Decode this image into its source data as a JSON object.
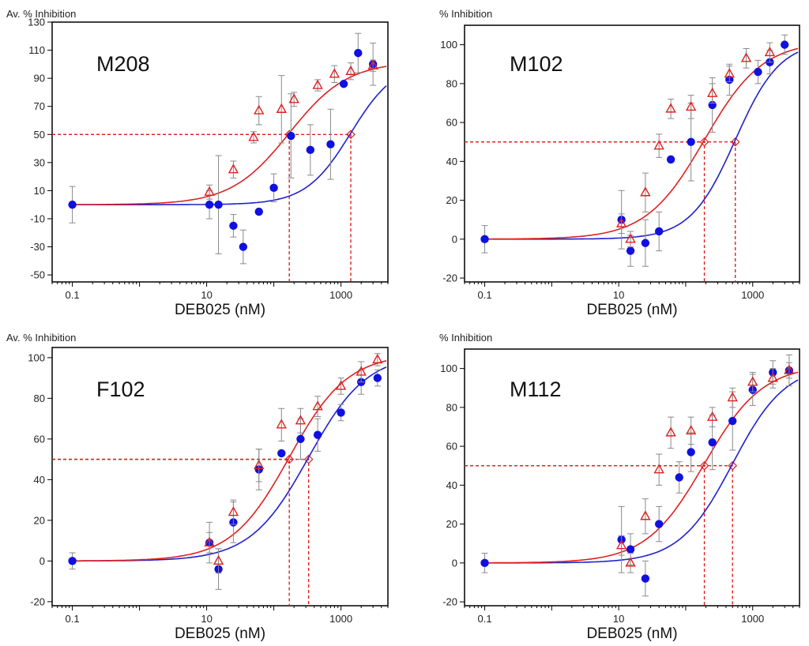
{
  "figure_caption": "",
  "chart_data": [
    {
      "type": "scatter",
      "title": "M208",
      "ylabel": "Av. % Inhibition",
      "xlabel": "DEB025 (nM)",
      "xscale": "log",
      "xlim": [
        0.05,
        5000
      ],
      "ylim": [
        -55,
        130
      ],
      "yticks": [
        -50,
        -30,
        -10,
        10,
        30,
        50,
        70,
        90,
        110,
        130
      ],
      "ytick_labels": [
        "-50",
        "-30",
        "-10",
        "10",
        "30",
        "50",
        "70",
        "90",
        "110",
        "130"
      ],
      "xticks": [
        0.1,
        10,
        1000
      ],
      "xtick_labels": [
        "0.1",
        "10",
        "1000"
      ],
      "series": [
        {
          "name": "blue (filled circles)",
          "color": "#1010e0",
          "marker": "circle",
          "x": [
            0.1,
            11,
            15,
            25,
            35,
            60,
            100,
            180,
            350,
            700,
            1100,
            1800,
            3000
          ],
          "y": [
            0,
            0,
            0,
            -15,
            -30,
            -5,
            12,
            49,
            39,
            43,
            86,
            108,
            100
          ],
          "err": [
            13,
            10,
            35,
            8,
            12,
            0,
            10,
            30,
            18,
            25,
            0,
            14,
            15
          ]
        },
        {
          "name": "red (open triangles)",
          "color": "#e02020",
          "marker": "triangle",
          "x": [
            11,
            25,
            50,
            60,
            130,
            200,
            450,
            800,
            1400,
            3000
          ],
          "y": [
            9,
            25,
            48,
            67,
            68,
            75,
            85,
            93,
            95,
            99
          ],
          "err": [
            5,
            6,
            4,
            10,
            24,
            5,
            4,
            6,
            6,
            4
          ]
        }
      ],
      "fits": [
        {
          "name": "blue fit",
          "color": "#2020d0",
          "ec50": 1400,
          "hill": 1.3,
          "bottom": 0,
          "top": 102
        },
        {
          "name": "red fit",
          "color": "#e02020",
          "ec50": 170,
          "hill": 1.0,
          "bottom": 0,
          "top": 102
        }
      ],
      "ic50_guides": [
        {
          "series": "red",
          "x": 170,
          "y": 50
        },
        {
          "series": "blue",
          "x": 1400,
          "y": 50
        }
      ]
    },
    {
      "type": "scatter",
      "title": "M102",
      "ylabel": "% Inhibition",
      "xlabel": "DEB025 (nM)",
      "xscale": "log",
      "xlim": [
        0.05,
        5000
      ],
      "ylim": [
        -22,
        110
      ],
      "yticks": [
        -20,
        0,
        20,
        40,
        60,
        80,
        100
      ],
      "ytick_labels": [
        "-20",
        "0",
        "20",
        "40",
        "60",
        "80",
        "100"
      ],
      "xticks": [
        0.1,
        10,
        1000
      ],
      "xtick_labels": [
        "0.1",
        "10",
        "1000"
      ],
      "series": [
        {
          "name": "blue (filled circles)",
          "color": "#1010e0",
          "marker": "circle",
          "x": [
            0.1,
            11,
            15,
            25,
            40,
            60,
            120,
            250,
            450,
            1200,
            1800,
            3000
          ],
          "y": [
            0,
            10,
            -6,
            -2,
            4,
            41,
            50,
            69,
            82,
            86,
            91,
            100
          ],
          "err": [
            7,
            15,
            8,
            12,
            10,
            0,
            20,
            14,
            8,
            6,
            6,
            5
          ]
        },
        {
          "name": "red (open triangles)",
          "color": "#e02020",
          "marker": "triangle",
          "x": [
            11,
            15,
            25,
            40,
            60,
            120,
            250,
            450,
            800,
            1800
          ],
          "y": [
            8,
            0,
            24,
            48,
            67,
            68,
            75,
            85,
            93,
            96
          ],
          "err": [
            5,
            4,
            10,
            6,
            5,
            6,
            5,
            4,
            5,
            5
          ]
        }
      ],
      "fits": [
        {
          "name": "blue fit",
          "color": "#2020d0",
          "ec50": 550,
          "hill": 1.3,
          "bottom": 0,
          "top": 102
        },
        {
          "name": "red fit",
          "color": "#e02020",
          "ec50": 190,
          "hill": 1.0,
          "bottom": 0,
          "top": 102
        }
      ],
      "ic50_guides": [
        {
          "series": "red",
          "x": 190,
          "y": 50
        },
        {
          "series": "blue",
          "x": 550,
          "y": 50
        }
      ]
    },
    {
      "type": "scatter",
      "title": "F102",
      "ylabel": "Av. % Inhibition",
      "xlabel": "DEB025 (nM)",
      "xscale": "log",
      "xlim": [
        0.05,
        5000
      ],
      "ylim": [
        -22,
        105
      ],
      "yticks": [
        -20,
        0,
        20,
        40,
        60,
        80,
        100
      ],
      "ytick_labels": [
        "-20",
        "0",
        "20",
        "40",
        "60",
        "80",
        "100"
      ],
      "xticks": [
        0.1,
        10,
        1000
      ],
      "xtick_labels": [
        "0.1",
        "10",
        "1000"
      ],
      "series": [
        {
          "name": "blue (filled circles)",
          "color": "#1010e0",
          "marker": "circle",
          "x": [
            0.1,
            11,
            15,
            25,
            60,
            130,
            250,
            450,
            1000,
            2000,
            3500
          ],
          "y": [
            0,
            9,
            -4,
            19,
            45,
            53,
            60,
            62,
            73,
            88,
            90
          ],
          "err": [
            4,
            10,
            10,
            10,
            10,
            0,
            10,
            8,
            4,
            6,
            4
          ]
        },
        {
          "name": "red (open triangles)",
          "color": "#e02020",
          "marker": "triangle",
          "x": [
            11,
            15,
            25,
            60,
            130,
            250,
            450,
            1000,
            2000,
            3500
          ],
          "y": [
            9,
            0,
            24,
            47,
            67,
            69,
            76,
            86,
            93,
            99
          ],
          "err": [
            5,
            6,
            6,
            8,
            8,
            6,
            5,
            4,
            5,
            3
          ]
        }
      ],
      "fits": [
        {
          "name": "blue fit",
          "color": "#2020d0",
          "ec50": 330,
          "hill": 1.0,
          "bottom": 0,
          "top": 102
        },
        {
          "name": "red fit",
          "color": "#e02020",
          "ec50": 170,
          "hill": 1.0,
          "bottom": 0,
          "top": 102
        }
      ],
      "ic50_guides": [
        {
          "series": "red",
          "x": 170,
          "y": 50
        },
        {
          "series": "blue",
          "x": 330,
          "y": 50
        }
      ]
    },
    {
      "type": "scatter",
      "title": "M112",
      "ylabel": "% Inhibition",
      "xlabel": "DEB025 (nM)",
      "xscale": "log",
      "xlim": [
        0.05,
        5000
      ],
      "ylim": [
        -22,
        110
      ],
      "yticks": [
        -20,
        0,
        20,
        40,
        60,
        80,
        100
      ],
      "ytick_labels": [
        "-20",
        "0",
        "20",
        "40",
        "60",
        "80",
        "100"
      ],
      "xticks": [
        0.1,
        10,
        1000
      ],
      "xtick_labels": [
        "0.1",
        "10",
        "1000"
      ],
      "series": [
        {
          "name": "blue (filled circles)",
          "color": "#1010e0",
          "marker": "circle",
          "x": [
            0.1,
            11,
            15,
            25,
            40,
            80,
            120,
            250,
            500,
            1000,
            2000,
            3500
          ],
          "y": [
            0,
            12,
            7,
            -8,
            20,
            44,
            57,
            62,
            73,
            89,
            98,
            99
          ],
          "err": [
            5,
            17,
            8,
            9,
            9,
            8,
            10,
            14,
            15,
            8,
            6,
            8
          ]
        },
        {
          "name": "red (open triangles)",
          "color": "#e02020",
          "marker": "triangle",
          "x": [
            11,
            15,
            25,
            40,
            60,
            120,
            250,
            500,
            1000,
            2000,
            3500
          ],
          "y": [
            9,
            0,
            24,
            48,
            67,
            68,
            75,
            85,
            93,
            95,
            99
          ],
          "err": [
            5,
            5,
            9,
            8,
            8,
            7,
            5,
            5,
            5,
            5,
            4
          ]
        }
      ],
      "fits": [
        {
          "name": "blue fit",
          "color": "#2020d0",
          "ec50": 500,
          "hill": 1.1,
          "bottom": 0,
          "top": 102
        },
        {
          "name": "red fit",
          "color": "#e02020",
          "ec50": 190,
          "hill": 1.0,
          "bottom": 0,
          "top": 102
        }
      ],
      "ic50_guides": [
        {
          "series": "red",
          "x": 190,
          "y": 50
        },
        {
          "series": "blue",
          "x": 500,
          "y": 50
        }
      ]
    }
  ]
}
